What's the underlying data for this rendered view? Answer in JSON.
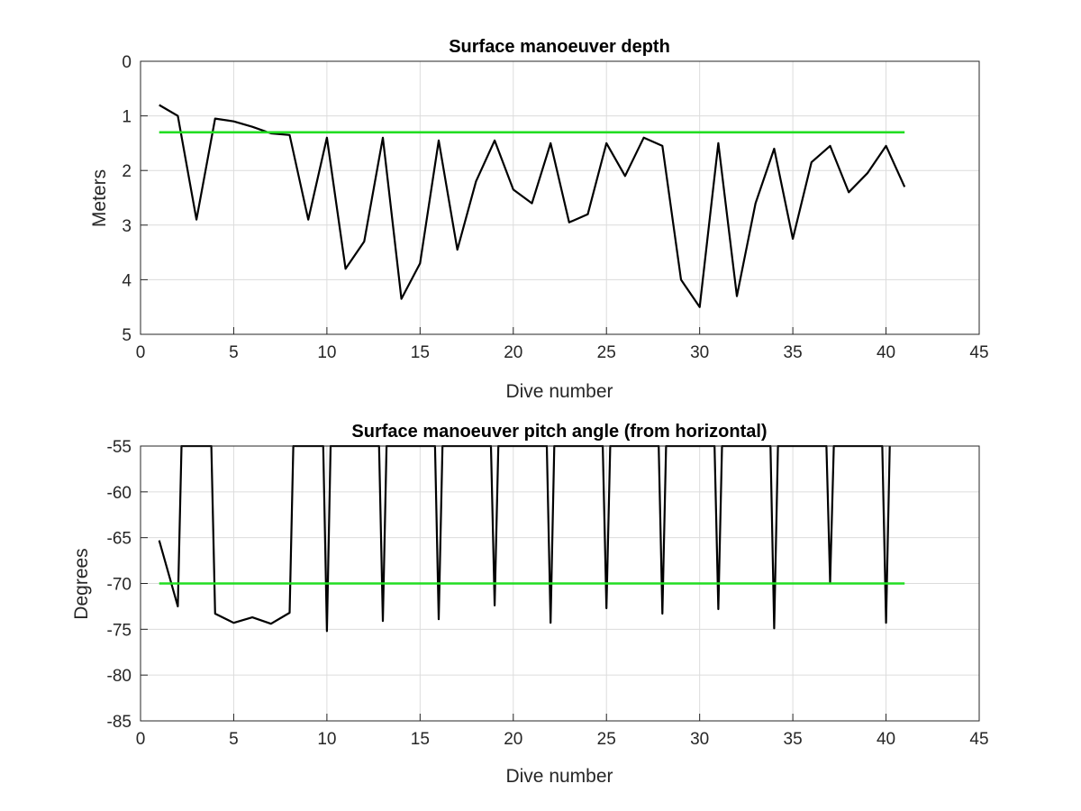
{
  "chart_data": [
    {
      "type": "line",
      "title": "Surface manoeuver depth",
      "xlabel": "Dive number",
      "ylabel": "Meters",
      "xlim": [
        0,
        45
      ],
      "ylim": [
        0,
        5
      ],
      "y_direction": "reversed",
      "grid": true,
      "xticks": [
        "0",
        "5",
        "10",
        "15",
        "20",
        "25",
        "30",
        "35",
        "40",
        "45"
      ],
      "yticks": [
        "0",
        "1",
        "2",
        "3",
        "4",
        "5"
      ],
      "series": [
        {
          "color": "#000000",
          "x": [
            1,
            2,
            3,
            4,
            5,
            6,
            7,
            8,
            9,
            10,
            11,
            12,
            13,
            14,
            15,
            16,
            17,
            18,
            19,
            20,
            21,
            22,
            23,
            24,
            25,
            26,
            27,
            28,
            29,
            30,
            31,
            32,
            33,
            34,
            35,
            36,
            37,
            38,
            39,
            40,
            41
          ],
          "y": [
            0.8,
            1.0,
            2.9,
            1.05,
            1.1,
            1.2,
            1.32,
            1.35,
            2.9,
            1.4,
            3.8,
            3.3,
            1.4,
            4.35,
            3.7,
            1.45,
            3.45,
            2.2,
            1.45,
            2.35,
            2.6,
            1.5,
            2.95,
            2.8,
            1.5,
            2.1,
            1.4,
            1.55,
            4.0,
            4.5,
            1.5,
            4.3,
            2.6,
            1.6,
            3.25,
            1.85,
            1.55,
            2.4,
            2.05,
            1.55,
            2.3
          ]
        },
        {
          "color": "#22dd22",
          "x": [
            1,
            41
          ],
          "y": [
            1.3,
            1.3
          ]
        }
      ]
    },
    {
      "type": "line",
      "title": "Surface manoeuver pitch angle (from horizontal)",
      "xlabel": "Dive number",
      "ylabel": "Degrees",
      "xlim": [
        0,
        45
      ],
      "ylim": [
        -85,
        -55
      ],
      "grid": true,
      "xticks": [
        "0",
        "5",
        "10",
        "15",
        "20",
        "25",
        "30",
        "35",
        "40",
        "45"
      ],
      "yticks": [
        "-55",
        "-60",
        "-65",
        "-70",
        "-75",
        "-80",
        "-85"
      ],
      "series": [
        {
          "color": "#000000",
          "x": [
            1,
            2,
            2.2,
            3.8,
            4,
            5,
            6,
            7,
            8,
            8.2,
            9.8,
            10,
            10.2,
            12.8,
            13,
            13.2,
            15.8,
            16,
            16.2,
            18.8,
            19,
            19.2,
            21.8,
            22,
            22.2,
            24.8,
            25,
            25.2,
            27.8,
            28,
            28.2,
            30.8,
            31,
            31.2,
            33.8,
            34,
            34.2,
            36.8,
            37,
            37.2,
            39.8,
            40,
            40.2
          ],
          "y": [
            -65.3,
            -72.5,
            -55,
            -55,
            -73.3,
            -74.3,
            -73.7,
            -74.4,
            -73.2,
            -55,
            -55,
            -75.2,
            -55,
            -55,
            -74.1,
            -55,
            -55,
            -73.9,
            -55,
            -55,
            -72.4,
            -55,
            -55,
            -74.3,
            -55,
            -55,
            -72.7,
            -55,
            -55,
            -73.3,
            -55,
            -55,
            -72.8,
            -55,
            -55,
            -74.9,
            -55,
            -55,
            -69.9,
            -55,
            -55,
            -74.3,
            -55
          ]
        },
        {
          "color": "#22dd22",
          "x": [
            1,
            41
          ],
          "y": [
            -70,
            -70
          ]
        }
      ]
    }
  ]
}
